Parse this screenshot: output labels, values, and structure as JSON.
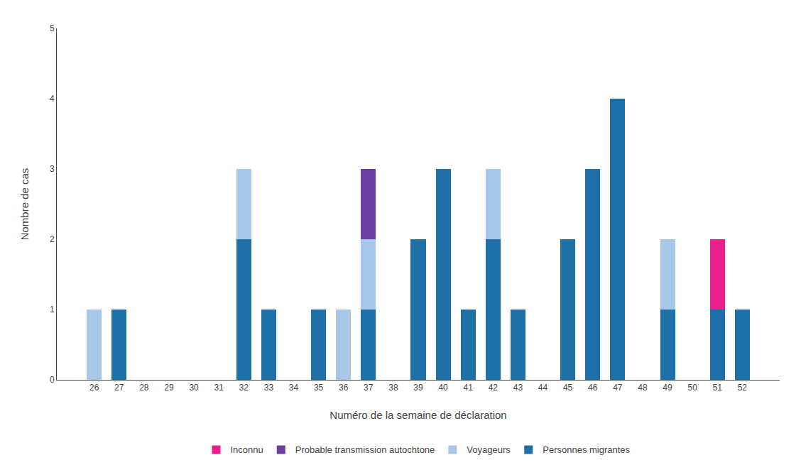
{
  "chart_data": {
    "type": "bar",
    "stacked": true,
    "x_label": "Numéro de la semaine de déclaration",
    "y_label": "Nombre de cas",
    "x": [
      26,
      27,
      28,
      29,
      30,
      31,
      32,
      33,
      34,
      35,
      36,
      37,
      38,
      39,
      40,
      41,
      42,
      43,
      44,
      45,
      46,
      47,
      48,
      49,
      50,
      51,
      52
    ],
    "series": [
      {
        "name": "Personnes migrantes",
        "color": "#1f6fa8",
        "values": [
          0,
          1,
          0,
          0,
          0,
          0,
          2,
          1,
          0,
          1,
          0,
          1,
          0,
          2,
          3,
          1,
          2,
          1,
          0,
          2,
          3,
          4,
          0,
          1,
          0,
          1,
          1
        ]
      },
      {
        "name": "Voyageurs",
        "color": "#a8c8e8",
        "values": [
          1,
          0,
          0,
          0,
          0,
          0,
          1,
          0,
          0,
          0,
          1,
          1,
          0,
          0,
          0,
          0,
          1,
          0,
          0,
          0,
          0,
          0,
          0,
          1,
          0,
          0,
          0
        ]
      },
      {
        "name": "Probable transmission autochtone",
        "color": "#6b3fa0",
        "values": [
          0,
          0,
          0,
          0,
          0,
          0,
          0,
          0,
          0,
          0,
          0,
          1,
          0,
          0,
          0,
          0,
          0,
          0,
          0,
          0,
          0,
          0,
          0,
          0,
          0,
          0,
          0
        ]
      },
      {
        "name": "Inconnu",
        "color": "#e91e8c",
        "values": [
          0,
          0,
          0,
          0,
          0,
          0,
          0,
          0,
          0,
          0,
          0,
          0,
          0,
          0,
          0,
          0,
          0,
          0,
          0,
          0,
          0,
          0,
          0,
          0,
          0,
          1,
          0
        ]
      }
    ],
    "xlim": [
      24.5,
      53.5
    ],
    "xticks": [
      26,
      27,
      28,
      29,
      30,
      31,
      32,
      33,
      34,
      35,
      36,
      37,
      38,
      39,
      40,
      41,
      42,
      43,
      44,
      45,
      46,
      47,
      48,
      49,
      50,
      51,
      52
    ],
    "ylim": [
      0,
      5
    ],
    "yticks": [
      0,
      1,
      2,
      3,
      4,
      5
    ],
    "grid": false,
    "legend": "bottom"
  }
}
